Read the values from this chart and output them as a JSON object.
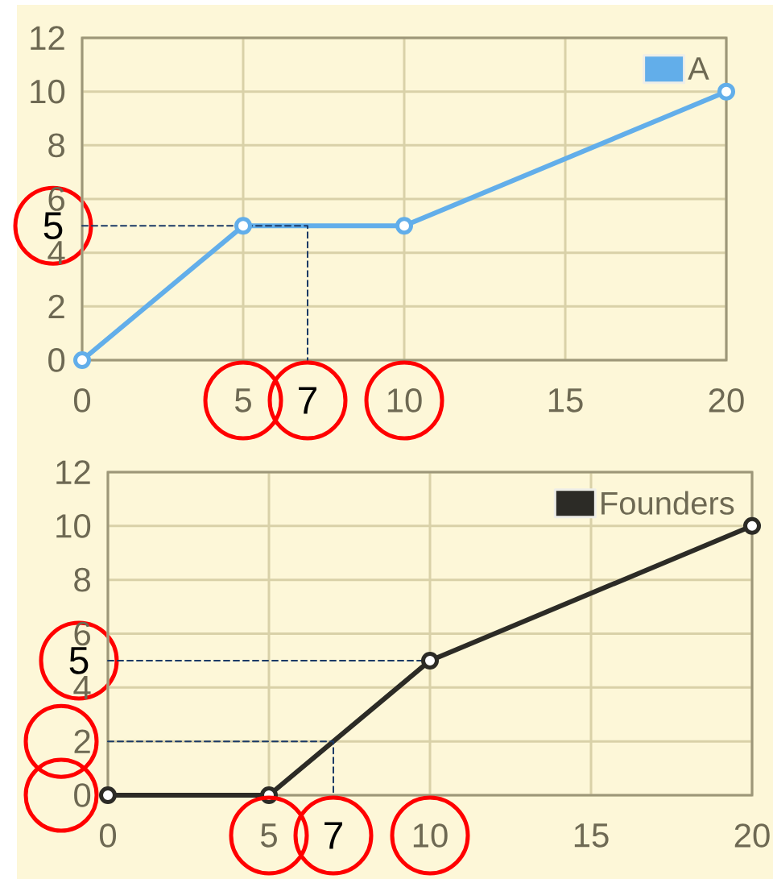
{
  "chart_data": [
    {
      "type": "line",
      "xlim": [
        0,
        20
      ],
      "ylim": [
        0,
        12
      ],
      "xticks": [
        0,
        5,
        10,
        15,
        20
      ],
      "yticks": [
        0,
        2,
        4,
        6,
        8,
        10,
        12
      ],
      "grid": true,
      "legend": "top right",
      "marker": "circle",
      "series": [
        {
          "name": "A",
          "color": "#62aeea",
          "x": [
            0,
            5,
            10,
            20
          ],
          "values": [
            0,
            5,
            5,
            10
          ]
        },
        {
          "color": "#1b3a66",
          "x": [
            0,
            7,
            7
          ],
          "values": [
            5,
            5,
            0
          ],
          "line_style": "dashed",
          "marker": "none"
        }
      ],
      "annotations": [
        "5",
        "7"
      ]
    },
    {
      "type": "line",
      "xlim": [
        0,
        20
      ],
      "ylim": [
        0,
        12
      ],
      "xticks": [
        0,
        5,
        10,
        15,
        20
      ],
      "yticks": [
        0,
        2,
        4,
        6,
        8,
        10,
        12
      ],
      "grid": true,
      "legend": "top right",
      "marker": "circle",
      "series": [
        {
          "name": "Founders",
          "color": "#2c2b26",
          "x": [
            0,
            5,
            10,
            20
          ],
          "values": [
            0,
            0,
            5,
            10
          ]
        },
        {
          "color": "#1b3a66",
          "x": [
            0,
            10
          ],
          "values": [
            5,
            5
          ],
          "line_style": "dashed",
          "marker": "none"
        },
        {
          "color": "#1b3a66",
          "x": [
            0,
            7,
            7
          ],
          "values": [
            2,
            2,
            0
          ],
          "line_style": "dashed",
          "marker": "none"
        }
      ],
      "annotations": [
        "5",
        "7"
      ]
    }
  ]
}
